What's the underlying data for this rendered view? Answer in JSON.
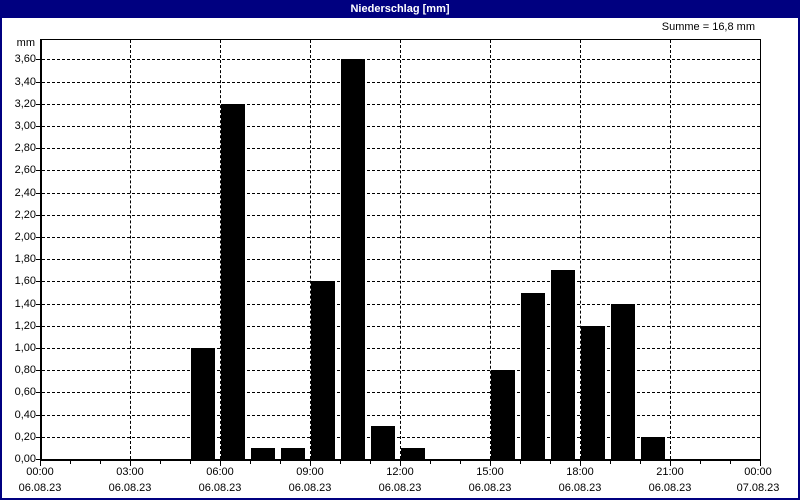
{
  "window": {
    "title": "Niederschlag [mm]",
    "summary_label": "Summe = 16,8 mm"
  },
  "chart_data": {
    "type": "bar",
    "title": "Niederschlag [mm]",
    "ylabel": "mm",
    "xlabel": "",
    "ylim": [
      0,
      3.78
    ],
    "y_tick_step": 0.2,
    "y_tick_labels": [
      "0,00",
      "0,20",
      "0,40",
      "0,60",
      "0,80",
      "1,00",
      "1,20",
      "1,40",
      "1,60",
      "1,80",
      "2,00",
      "2,20",
      "2,40",
      "2,60",
      "2,80",
      "3,00",
      "3,20",
      "3,40",
      "3,60"
    ],
    "sum_mm": 16.8,
    "grid": "dashed",
    "legend_position": "none",
    "x_axis": {
      "unit": "hour",
      "range_hours": [
        0,
        24
      ],
      "major_tick_interval_hours": 3,
      "minor_tick_interval_hours": 1,
      "major_ticks": [
        {
          "hour": 0,
          "time": "00:00",
          "date": "06.08.23"
        },
        {
          "hour": 3,
          "time": "03:00",
          "date": "06.08.23"
        },
        {
          "hour": 6,
          "time": "06:00",
          "date": "06.08.23"
        },
        {
          "hour": 9,
          "time": "09:00",
          "date": "06.08.23"
        },
        {
          "hour": 12,
          "time": "12:00",
          "date": "06.08.23"
        },
        {
          "hour": 15,
          "time": "15:00",
          "date": "06.08.23"
        },
        {
          "hour": 18,
          "time": "18:00",
          "date": "06.08.23"
        },
        {
          "hour": 21,
          "time": "21:00",
          "date": "06.08.23"
        },
        {
          "hour": 24,
          "time": "00:00",
          "date": "07.08.23"
        }
      ]
    },
    "bars": [
      {
        "start_hour": 5,
        "value": 1.0
      },
      {
        "start_hour": 6,
        "value": 3.2
      },
      {
        "start_hour": 7,
        "value": 0.1
      },
      {
        "start_hour": 8,
        "value": 0.1
      },
      {
        "start_hour": 9,
        "value": 1.6
      },
      {
        "start_hour": 10,
        "value": 3.6
      },
      {
        "start_hour": 11,
        "value": 0.3
      },
      {
        "start_hour": 12,
        "value": 0.1
      },
      {
        "start_hour": 15,
        "value": 0.8
      },
      {
        "start_hour": 16,
        "value": 1.5
      },
      {
        "start_hour": 17,
        "value": 1.7
      },
      {
        "start_hour": 18,
        "value": 1.2
      },
      {
        "start_hour": 19,
        "value": 1.4
      },
      {
        "start_hour": 20,
        "value": 0.2
      }
    ],
    "colors": {
      "titlebar_bg": "#000080",
      "titlebar_text": "#ffffff",
      "window_border": "#000080",
      "background": "#ffffff",
      "bar": "#000000",
      "axis": "#000000",
      "grid": "#000000",
      "text": "#000000"
    }
  }
}
